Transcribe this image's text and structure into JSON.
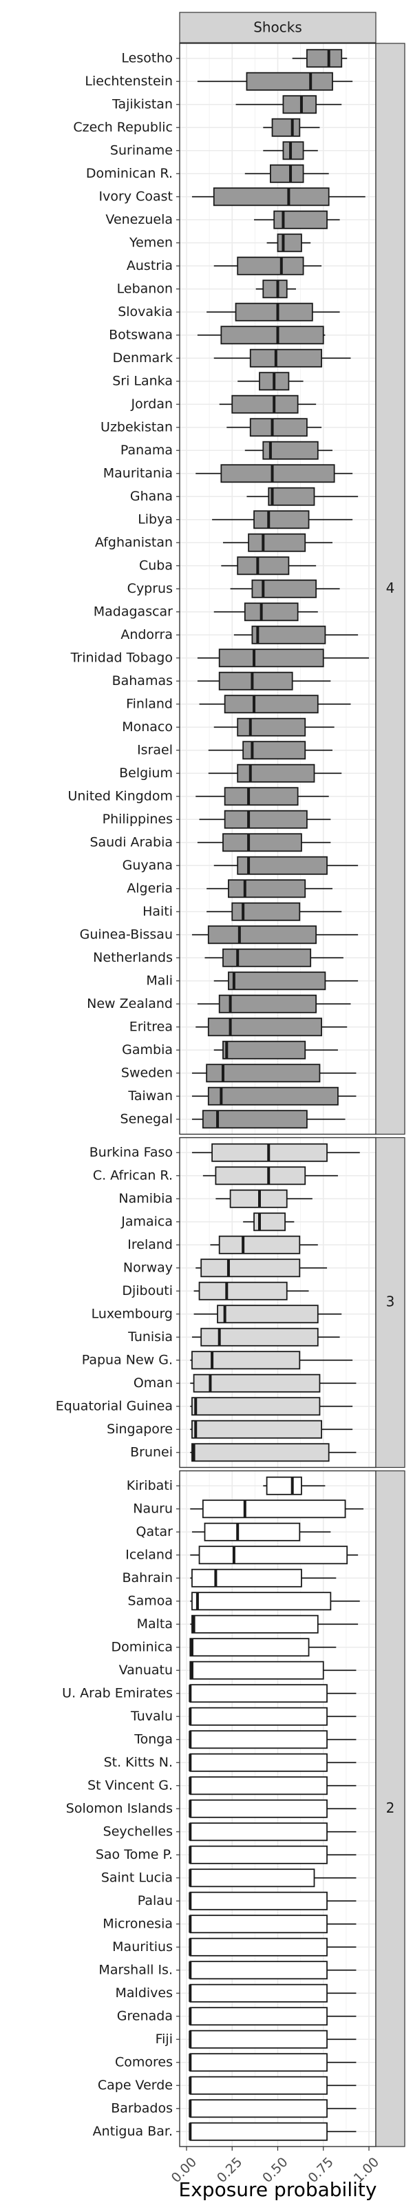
{
  "chart_data": {
    "type": "boxplot",
    "facet_title": "Shocks",
    "xlabel": "Exposure probability",
    "xlim": [
      0,
      1
    ],
    "x_ticks": [
      "0.00",
      "0.25",
      "0.50",
      "0.75",
      "1.00"
    ],
    "x_tick_values": [
      0,
      0.25,
      0.5,
      0.75,
      1.0
    ],
    "colors": {
      "4": "#999999",
      "3": "#d9d9d9",
      "2": "#ffffff",
      "stroke": "#1a1a1a",
      "grid": "#ebebeb",
      "strip": "#d3d3d3"
    },
    "panels": [
      {
        "label": "4",
        "categories": [
          {
            "name": "Lesotho",
            "whisker_low": 0.58,
            "q1": 0.66,
            "median": 0.78,
            "q3": 0.85,
            "whisker_high": 0.88
          },
          {
            "name": "Liechtenstein",
            "whisker_low": 0.06,
            "q1": 0.33,
            "median": 0.68,
            "q3": 0.8,
            "whisker_high": 0.91
          },
          {
            "name": "Tajikistan",
            "whisker_low": 0.27,
            "q1": 0.53,
            "median": 0.63,
            "q3": 0.71,
            "whisker_high": 0.85
          },
          {
            "name": "Czech Republic",
            "whisker_low": 0.42,
            "q1": 0.47,
            "median": 0.58,
            "q3": 0.62,
            "whisker_high": 0.73
          },
          {
            "name": "Suriname",
            "whisker_low": 0.42,
            "q1": 0.53,
            "median": 0.57,
            "q3": 0.64,
            "whisker_high": 0.72
          },
          {
            "name": "Dominican R.",
            "whisker_low": 0.32,
            "q1": 0.46,
            "median": 0.57,
            "q3": 0.64,
            "whisker_high": 0.78
          },
          {
            "name": "Ivory Coast",
            "whisker_low": 0.03,
            "q1": 0.15,
            "median": 0.56,
            "q3": 0.78,
            "whisker_high": 0.98
          },
          {
            "name": "Venezuela",
            "whisker_low": 0.37,
            "q1": 0.48,
            "median": 0.53,
            "q3": 0.77,
            "whisker_high": 0.84
          },
          {
            "name": "Yemen",
            "whisker_low": 0.44,
            "q1": 0.5,
            "median": 0.53,
            "q3": 0.63,
            "whisker_high": 0.68
          },
          {
            "name": "Austria",
            "whisker_low": 0.15,
            "q1": 0.28,
            "median": 0.52,
            "q3": 0.64,
            "whisker_high": 0.74
          },
          {
            "name": "Lebanon",
            "whisker_low": 0.38,
            "q1": 0.42,
            "median": 0.5,
            "q3": 0.55,
            "whisker_high": 0.6
          },
          {
            "name": "Slovakia",
            "whisker_low": 0.11,
            "q1": 0.27,
            "median": 0.5,
            "q3": 0.69,
            "whisker_high": 0.84
          },
          {
            "name": "Botswana",
            "whisker_low": 0.06,
            "q1": 0.19,
            "median": 0.5,
            "q3": 0.75,
            "whisker_high": 0.76
          },
          {
            "name": "Denmark",
            "whisker_low": 0.15,
            "q1": 0.35,
            "median": 0.49,
            "q3": 0.74,
            "whisker_high": 0.9
          },
          {
            "name": "Sri Lanka",
            "whisker_low": 0.28,
            "q1": 0.4,
            "median": 0.48,
            "q3": 0.56,
            "whisker_high": 0.64
          },
          {
            "name": "Jordan",
            "whisker_low": 0.18,
            "q1": 0.25,
            "median": 0.48,
            "q3": 0.61,
            "whisker_high": 0.71
          },
          {
            "name": "Uzbekistan",
            "whisker_low": 0.22,
            "q1": 0.35,
            "median": 0.47,
            "q3": 0.66,
            "whisker_high": 0.74
          },
          {
            "name": "Panama",
            "whisker_low": 0.32,
            "q1": 0.42,
            "median": 0.46,
            "q3": 0.72,
            "whisker_high": 0.8
          },
          {
            "name": "Mauritania",
            "whisker_low": 0.05,
            "q1": 0.19,
            "median": 0.47,
            "q3": 0.81,
            "whisker_high": 0.91
          },
          {
            "name": "Ghana",
            "whisker_low": 0.33,
            "q1": 0.45,
            "median": 0.47,
            "q3": 0.7,
            "whisker_high": 0.94
          },
          {
            "name": "Libya",
            "whisker_low": 0.14,
            "q1": 0.37,
            "median": 0.45,
            "q3": 0.67,
            "whisker_high": 0.91
          },
          {
            "name": "Afghanistan",
            "whisker_low": 0.2,
            "q1": 0.34,
            "median": 0.42,
            "q3": 0.65,
            "whisker_high": 0.8
          },
          {
            "name": "Cuba",
            "whisker_low": 0.19,
            "q1": 0.28,
            "median": 0.39,
            "q3": 0.56,
            "whisker_high": 0.71
          },
          {
            "name": "Cyprus",
            "whisker_low": 0.24,
            "q1": 0.36,
            "median": 0.42,
            "q3": 0.71,
            "whisker_high": 0.84
          },
          {
            "name": "Madagascar",
            "whisker_low": 0.15,
            "q1": 0.32,
            "median": 0.41,
            "q3": 0.61,
            "whisker_high": 0.72
          },
          {
            "name": "Andorra",
            "whisker_low": 0.26,
            "q1": 0.36,
            "median": 0.39,
            "q3": 0.76,
            "whisker_high": 0.94
          },
          {
            "name": "Trinidad Tobago",
            "whisker_low": 0.06,
            "q1": 0.18,
            "median": 0.37,
            "q3": 0.75,
            "whisker_high": 1.0
          },
          {
            "name": "Bahamas",
            "whisker_low": 0.06,
            "q1": 0.18,
            "median": 0.36,
            "q3": 0.58,
            "whisker_high": 0.79
          },
          {
            "name": "Finland",
            "whisker_low": 0.07,
            "q1": 0.21,
            "median": 0.37,
            "q3": 0.72,
            "whisker_high": 0.9
          },
          {
            "name": "Monaco",
            "whisker_low": 0.15,
            "q1": 0.28,
            "median": 0.35,
            "q3": 0.65,
            "whisker_high": 0.81
          },
          {
            "name": "Israel",
            "whisker_low": 0.12,
            "q1": 0.31,
            "median": 0.36,
            "q3": 0.65,
            "whisker_high": 0.8
          },
          {
            "name": "Belgium",
            "whisker_low": 0.12,
            "q1": 0.28,
            "median": 0.35,
            "q3": 0.7,
            "whisker_high": 0.85
          },
          {
            "name": "United Kingdom",
            "whisker_low": 0.05,
            "q1": 0.21,
            "median": 0.34,
            "q3": 0.61,
            "whisker_high": 0.78
          },
          {
            "name": "Philippines",
            "whisker_low": 0.07,
            "q1": 0.21,
            "median": 0.34,
            "q3": 0.66,
            "whisker_high": 0.79
          },
          {
            "name": "Saudi Arabia",
            "whisker_low": 0.06,
            "q1": 0.2,
            "median": 0.34,
            "q3": 0.63,
            "whisker_high": 0.79
          },
          {
            "name": "Guyana",
            "whisker_low": 0.15,
            "q1": 0.28,
            "median": 0.34,
            "q3": 0.77,
            "whisker_high": 0.94
          },
          {
            "name": "Algeria",
            "whisker_low": 0.11,
            "q1": 0.23,
            "median": 0.32,
            "q3": 0.65,
            "whisker_high": 0.8
          },
          {
            "name": "Haiti",
            "whisker_low": 0.11,
            "q1": 0.25,
            "median": 0.31,
            "q3": 0.62,
            "whisker_high": 0.85
          },
          {
            "name": "Guinea-Bissau",
            "whisker_low": 0.03,
            "q1": 0.12,
            "median": 0.29,
            "q3": 0.71,
            "whisker_high": 0.94
          },
          {
            "name": "Netherlands",
            "whisker_low": 0.1,
            "q1": 0.2,
            "median": 0.28,
            "q3": 0.68,
            "whisker_high": 0.86
          },
          {
            "name": "Mali",
            "whisker_low": 0.15,
            "q1": 0.23,
            "median": 0.26,
            "q3": 0.76,
            "whisker_high": 0.94
          },
          {
            "name": "New Zealand",
            "whisker_low": 0.06,
            "q1": 0.18,
            "median": 0.24,
            "q3": 0.71,
            "whisker_high": 0.9
          },
          {
            "name": "Eritrea",
            "whisker_low": 0.05,
            "q1": 0.12,
            "median": 0.24,
            "q3": 0.74,
            "whisker_high": 0.88
          },
          {
            "name": "Gambia",
            "whisker_low": 0.15,
            "q1": 0.2,
            "median": 0.22,
            "q3": 0.65,
            "whisker_high": 0.83
          },
          {
            "name": "Sweden",
            "whisker_low": 0.03,
            "q1": 0.11,
            "median": 0.2,
            "q3": 0.73,
            "whisker_high": 0.93
          },
          {
            "name": "Taiwan",
            "whisker_low": 0.03,
            "q1": 0.12,
            "median": 0.19,
            "q3": 0.83,
            "whisker_high": 0.93
          },
          {
            "name": "Senegal",
            "whisker_low": 0.03,
            "q1": 0.09,
            "median": 0.17,
            "q3": 0.66,
            "whisker_high": 0.87
          }
        ]
      },
      {
        "label": "3",
        "categories": [
          {
            "name": "Burkina Faso",
            "whisker_low": 0.03,
            "q1": 0.14,
            "median": 0.45,
            "q3": 0.77,
            "whisker_high": 0.95
          },
          {
            "name": "C. African R.",
            "whisker_low": 0.09,
            "q1": 0.16,
            "median": 0.45,
            "q3": 0.65,
            "whisker_high": 0.83
          },
          {
            "name": "Namibia",
            "whisker_low": 0.16,
            "q1": 0.24,
            "median": 0.4,
            "q3": 0.55,
            "whisker_high": 0.69
          },
          {
            "name": "Jamaica",
            "whisker_low": 0.31,
            "q1": 0.37,
            "median": 0.4,
            "q3": 0.54,
            "whisker_high": 0.59
          },
          {
            "name": "Ireland",
            "whisker_low": 0.13,
            "q1": 0.18,
            "median": 0.31,
            "q3": 0.62,
            "whisker_high": 0.72
          },
          {
            "name": "Norway",
            "whisker_low": 0.05,
            "q1": 0.08,
            "median": 0.23,
            "q3": 0.62,
            "whisker_high": 0.77
          },
          {
            "name": "Djibouti",
            "whisker_low": 0.04,
            "q1": 0.07,
            "median": 0.22,
            "q3": 0.55,
            "whisker_high": 0.67
          },
          {
            "name": "Luxembourg",
            "whisker_low": 0.04,
            "q1": 0.17,
            "median": 0.21,
            "q3": 0.72,
            "whisker_high": 0.85
          },
          {
            "name": "Tunisia",
            "whisker_low": 0.03,
            "q1": 0.08,
            "median": 0.18,
            "q3": 0.72,
            "whisker_high": 0.84
          },
          {
            "name": "Papua New G.",
            "whisker_low": 0.02,
            "q1": 0.03,
            "median": 0.14,
            "q3": 0.62,
            "whisker_high": 0.91
          },
          {
            "name": "Oman",
            "whisker_low": 0.02,
            "q1": 0.04,
            "median": 0.13,
            "q3": 0.73,
            "whisker_high": 0.93
          },
          {
            "name": "Equatorial Guinea",
            "whisker_low": 0.02,
            "q1": 0.03,
            "median": 0.05,
            "q3": 0.73,
            "whisker_high": 0.91
          },
          {
            "name": "Singapore",
            "whisker_low": 0.02,
            "q1": 0.03,
            "median": 0.05,
            "q3": 0.74,
            "whisker_high": 0.91
          },
          {
            "name": "Brunei",
            "whisker_low": 0.02,
            "q1": 0.03,
            "median": 0.04,
            "q3": 0.78,
            "whisker_high": 0.93
          }
        ]
      },
      {
        "label": "2",
        "categories": [
          {
            "name": "Kiribati",
            "whisker_low": 0.42,
            "q1": 0.44,
            "median": 0.58,
            "q3": 0.63,
            "whisker_high": 0.76
          },
          {
            "name": "Nauru",
            "whisker_low": 0.02,
            "q1": 0.09,
            "median": 0.32,
            "q3": 0.87,
            "whisker_high": 0.97
          },
          {
            "name": "Qatar",
            "whisker_low": 0.03,
            "q1": 0.1,
            "median": 0.28,
            "q3": 0.62,
            "whisker_high": 0.79
          },
          {
            "name": "Iceland",
            "whisker_low": 0.02,
            "q1": 0.07,
            "median": 0.26,
            "q3": 0.88,
            "whisker_high": 0.94
          },
          {
            "name": "Bahrain",
            "whisker_low": 0.02,
            "q1": 0.03,
            "median": 0.16,
            "q3": 0.63,
            "whisker_high": 0.82
          },
          {
            "name": "Samoa",
            "whisker_low": 0.02,
            "q1": 0.03,
            "median": 0.06,
            "q3": 0.79,
            "whisker_high": 0.95
          },
          {
            "name": "Malta",
            "whisker_low": 0.02,
            "q1": 0.03,
            "median": 0.04,
            "q3": 0.72,
            "whisker_high": 0.94
          },
          {
            "name": "Dominica",
            "whisker_low": 0.02,
            "q1": 0.02,
            "median": 0.03,
            "q3": 0.67,
            "whisker_high": 0.82
          },
          {
            "name": "Vanuatu",
            "whisker_low": 0.02,
            "q1": 0.02,
            "median": 0.03,
            "q3": 0.75,
            "whisker_high": 0.93
          },
          {
            "name": "U. Arab Emirates",
            "whisker_low": 0.02,
            "q1": 0.02,
            "median": 0.02,
            "q3": 0.77,
            "whisker_high": 0.93
          },
          {
            "name": "Tuvalu",
            "whisker_low": 0.02,
            "q1": 0.02,
            "median": 0.02,
            "q3": 0.77,
            "whisker_high": 0.93
          },
          {
            "name": "Tonga",
            "whisker_low": 0.02,
            "q1": 0.02,
            "median": 0.02,
            "q3": 0.77,
            "whisker_high": 0.93
          },
          {
            "name": "St. Kitts N.",
            "whisker_low": 0.02,
            "q1": 0.02,
            "median": 0.02,
            "q3": 0.77,
            "whisker_high": 0.93
          },
          {
            "name": "St Vincent G.",
            "whisker_low": 0.02,
            "q1": 0.02,
            "median": 0.02,
            "q3": 0.77,
            "whisker_high": 0.93
          },
          {
            "name": "Solomon Islands",
            "whisker_low": 0.02,
            "q1": 0.02,
            "median": 0.02,
            "q3": 0.77,
            "whisker_high": 0.93
          },
          {
            "name": "Seychelles",
            "whisker_low": 0.02,
            "q1": 0.02,
            "median": 0.02,
            "q3": 0.77,
            "whisker_high": 0.93
          },
          {
            "name": "Sao Tome P.",
            "whisker_low": 0.02,
            "q1": 0.02,
            "median": 0.02,
            "q3": 0.77,
            "whisker_high": 0.93
          },
          {
            "name": "Saint Lucia",
            "whisker_low": 0.02,
            "q1": 0.02,
            "median": 0.02,
            "q3": 0.7,
            "whisker_high": 0.93
          },
          {
            "name": "Palau",
            "whisker_low": 0.02,
            "q1": 0.02,
            "median": 0.02,
            "q3": 0.77,
            "whisker_high": 0.93
          },
          {
            "name": "Micronesia",
            "whisker_low": 0.02,
            "q1": 0.02,
            "median": 0.02,
            "q3": 0.77,
            "whisker_high": 0.93
          },
          {
            "name": "Mauritius",
            "whisker_low": 0.02,
            "q1": 0.02,
            "median": 0.02,
            "q3": 0.77,
            "whisker_high": 0.93
          },
          {
            "name": "Marshall Is.",
            "whisker_low": 0.02,
            "q1": 0.02,
            "median": 0.02,
            "q3": 0.77,
            "whisker_high": 0.93
          },
          {
            "name": "Maldives",
            "whisker_low": 0.02,
            "q1": 0.02,
            "median": 0.02,
            "q3": 0.77,
            "whisker_high": 0.93
          },
          {
            "name": "Grenada",
            "whisker_low": 0.02,
            "q1": 0.02,
            "median": 0.02,
            "q3": 0.77,
            "whisker_high": 0.93
          },
          {
            "name": "Fiji",
            "whisker_low": 0.02,
            "q1": 0.02,
            "median": 0.02,
            "q3": 0.77,
            "whisker_high": 0.93
          },
          {
            "name": "Comores",
            "whisker_low": 0.02,
            "q1": 0.02,
            "median": 0.02,
            "q3": 0.77,
            "whisker_high": 0.93
          },
          {
            "name": "Cape Verde",
            "whisker_low": 0.02,
            "q1": 0.02,
            "median": 0.02,
            "q3": 0.77,
            "whisker_high": 0.93
          },
          {
            "name": "Barbados",
            "whisker_low": 0.02,
            "q1": 0.02,
            "median": 0.02,
            "q3": 0.77,
            "whisker_high": 0.93
          },
          {
            "name": "Antigua Bar.",
            "whisker_low": 0.02,
            "q1": 0.02,
            "median": 0.02,
            "q3": 0.77,
            "whisker_high": 0.93
          }
        ]
      }
    ]
  }
}
